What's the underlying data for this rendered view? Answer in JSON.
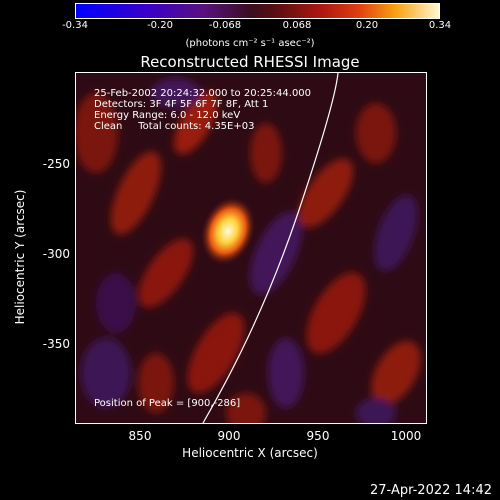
{
  "colorbar": {
    "ticks": [
      "-0.34",
      "-0.20",
      "-0.068",
      "0.068",
      "0.20",
      "0.34"
    ],
    "unit": "(photons cm⁻² s⁻¹ asec⁻²)"
  },
  "title": "Reconstructed RHESSI Image",
  "info": {
    "line1": "25-Feb-2002 20:24:32.000 to 20:25:44.000",
    "line2": "Detectors: 3F 4F 5F 6F 7F 8F, Att 1",
    "line3": "Energy Range: 6.0 - 12.0 keV",
    "line4": "Clean     Total counts: 4.35E+03",
    "peak": "Position of Peak = [900,-286]"
  },
  "axes": {
    "xlabel": "Heliocentric X (arcsec)",
    "ylabel": "Heliocentric Y (arcsec)",
    "xticks": [
      "850",
      "900",
      "950",
      "1000"
    ],
    "yticks": [
      "-250",
      "-300",
      "-350"
    ]
  },
  "footer": {
    "timestamp": "27-Apr-2022 14:42"
  }
}
